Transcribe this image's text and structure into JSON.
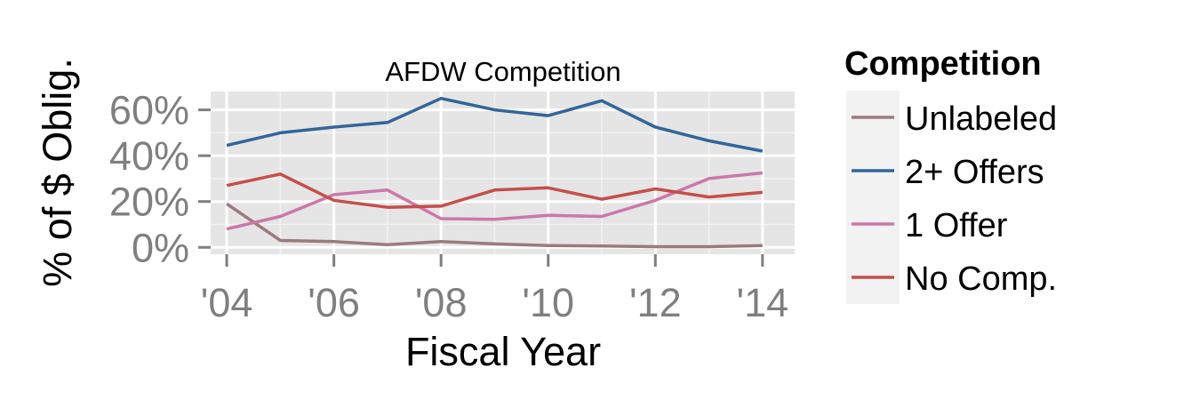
{
  "chart_data": {
    "type": "line",
    "title": "AFDW Competition",
    "xlabel": "Fiscal Year",
    "ylabel": "% of $ Oblig.",
    "x": [
      2004,
      2005,
      2006,
      2007,
      2008,
      2009,
      2010,
      2011,
      2012,
      2013,
      2014
    ],
    "xlim": [
      2003.7,
      2014.6
    ],
    "ylim": [
      -3,
      68
    ],
    "y_ticks": [
      0,
      20,
      40,
      60
    ],
    "y_tick_labels": [
      "0%",
      "20%",
      "40%",
      "60%"
    ],
    "x_ticks": [
      2004,
      2006,
      2008,
      2010,
      2012,
      2014
    ],
    "x_tick_labels": [
      "'04",
      "'06",
      "'08",
      "'10",
      "'12",
      "'14"
    ],
    "grid": true,
    "legend_title": "Competition",
    "legend_position": "right",
    "series": [
      {
        "name": "Unlabeled",
        "color": "#9c7a7c",
        "values": [
          19,
          3,
          2.5,
          1.2,
          2.5,
          1.5,
          0.8,
          0.6,
          0.3,
          0.3,
          0.8
        ]
      },
      {
        "name": "2+ Offers",
        "color": "#336699",
        "values": [
          44.5,
          50,
          52.5,
          54.5,
          65,
          60,
          57.5,
          64,
          52.5,
          46.5,
          42
        ]
      },
      {
        "name": "1 Offer",
        "color": "#cc77aa",
        "values": [
          8,
          13.5,
          23,
          25,
          12.5,
          12.2,
          14,
          13.5,
          20.5,
          30,
          32.5
        ]
      },
      {
        "name": "No Comp.",
        "color": "#c44f4a",
        "values": [
          27,
          32,
          20.5,
          17.5,
          18,
          25,
          26,
          21,
          25.5,
          22,
          24
        ]
      }
    ]
  }
}
